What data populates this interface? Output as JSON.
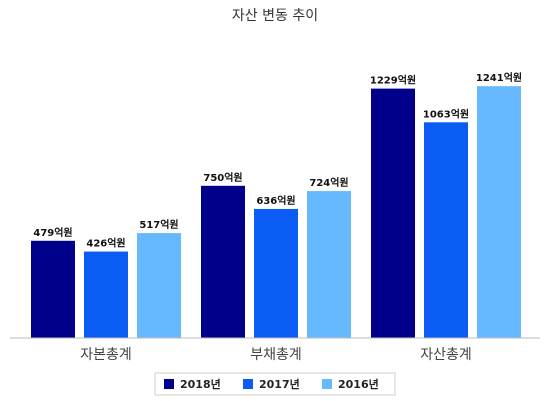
{
  "chart_data": {
    "type": "bar",
    "title": "자산 변동 추이",
    "categories": [
      "자본총계",
      "부채총계",
      "자산총계"
    ],
    "series": [
      {
        "name": "2018년",
        "values": [
          479,
          750,
          1229
        ],
        "labels": [
          "479억원",
          "750억원",
          "1229억원"
        ],
        "color": "#00008b"
      },
      {
        "name": "2017년",
        "values": [
          426,
          636,
          1063
        ],
        "labels": [
          "426억원",
          "636억원",
          "1063억원"
        ],
        "color": "#0a5cf5"
      },
      {
        "name": "2016년",
        "values": [
          517,
          724,
          1241
        ],
        "labels": [
          "517억원",
          "724억원",
          "1241억원"
        ],
        "color": "#66b8ff"
      }
    ],
    "ylim": [
      0,
      1370
    ],
    "grid": false,
    "legend": "bottom-center",
    "xlabel": "",
    "ylabel": ""
  }
}
